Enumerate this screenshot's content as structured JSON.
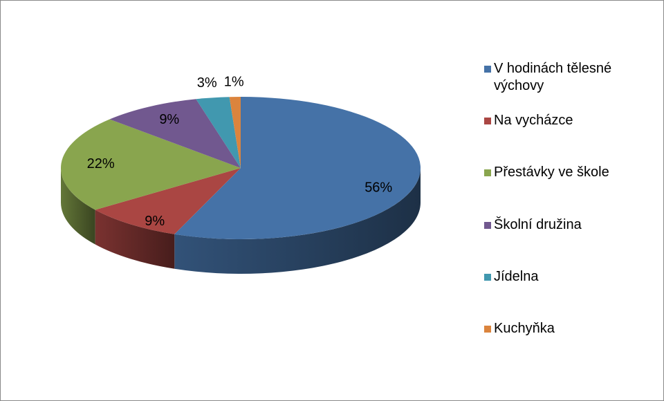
{
  "chart_data": {
    "type": "pie",
    "categories": [
      "V hodinách tělesné výchovy",
      "Na vycházce",
      "Přestávky ve škole",
      "Školní družina",
      "Jídelna",
      "Kuchyňka"
    ],
    "values": [
      56,
      9,
      22,
      9,
      3,
      1
    ],
    "value_labels": [
      "56%",
      "9%",
      "22%",
      "9%",
      "3%",
      "1%"
    ],
    "colors": [
      "#4572a7",
      "#aa4643",
      "#89a54e",
      "#71588f",
      "#4198af",
      "#db843d"
    ],
    "legend": "right"
  }
}
